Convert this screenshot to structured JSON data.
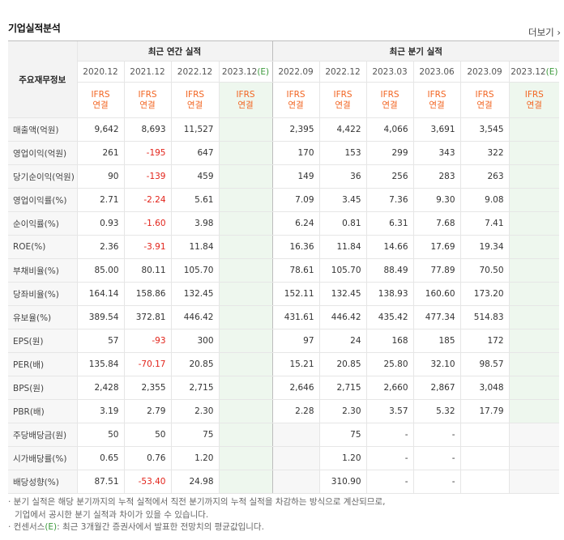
{
  "title": "기업실적분석",
  "more": "더보기",
  "header": {
    "row_label": "주요재무정보",
    "annual_title": "최근 연간 실적",
    "quarter_title": "최근 분기 실적",
    "periods": [
      "2020.12",
      "2021.12",
      "2022.12",
      "2023.12",
      "2022.09",
      "2022.12",
      "2023.03",
      "2023.06",
      "2023.09",
      "2023.12"
    ],
    "est_mark": "(E)",
    "ifrs_top": "IFRS",
    "ifrs_bottom": "연결"
  },
  "rows": [
    {
      "label": "매출액(억원)",
      "values": [
        "9,642",
        "8,693",
        "11,527",
        "",
        "2,395",
        "4,422",
        "4,066",
        "3,691",
        "3,545",
        ""
      ]
    },
    {
      "label": "영업이익(억원)",
      "values": [
        "261",
        "-195",
        "647",
        "",
        "170",
        "153",
        "299",
        "343",
        "322",
        ""
      ]
    },
    {
      "label": "당기순이익(억원)",
      "values": [
        "90",
        "-139",
        "459",
        "",
        "149",
        "36",
        "256",
        "283",
        "263",
        ""
      ]
    },
    {
      "label": "영업이익률(%)",
      "values": [
        "2.71",
        "-2.24",
        "5.61",
        "",
        "7.09",
        "3.45",
        "7.36",
        "9.30",
        "9.08",
        ""
      ]
    },
    {
      "label": "순이익률(%)",
      "values": [
        "0.93",
        "-1.60",
        "3.98",
        "",
        "6.24",
        "0.81",
        "6.31",
        "7.68",
        "7.41",
        ""
      ]
    },
    {
      "label": "ROE(%)",
      "values": [
        "2.36",
        "-3.91",
        "11.84",
        "",
        "16.36",
        "11.84",
        "14.66",
        "17.69",
        "19.34",
        ""
      ]
    },
    {
      "label": "부채비율(%)",
      "values": [
        "85.00",
        "80.11",
        "105.70",
        "",
        "78.61",
        "105.70",
        "88.49",
        "77.89",
        "70.50",
        ""
      ]
    },
    {
      "label": "당좌비율(%)",
      "values": [
        "164.14",
        "158.86",
        "132.45",
        "",
        "152.11",
        "132.45",
        "138.93",
        "160.60",
        "173.20",
        ""
      ]
    },
    {
      "label": "유보율(%)",
      "values": [
        "389.54",
        "372.81",
        "446.42",
        "",
        "431.61",
        "446.42",
        "435.42",
        "477.34",
        "514.83",
        ""
      ]
    },
    {
      "label": "EPS(원)",
      "values": [
        "57",
        "-93",
        "300",
        "",
        "97",
        "24",
        "168",
        "185",
        "172",
        ""
      ]
    },
    {
      "label": "PER(배)",
      "values": [
        "135.84",
        "-70.17",
        "20.85",
        "",
        "15.21",
        "20.85",
        "25.80",
        "32.10",
        "98.57",
        ""
      ]
    },
    {
      "label": "BPS(원)",
      "values": [
        "2,428",
        "2,355",
        "2,715",
        "",
        "2,646",
        "2,715",
        "2,660",
        "2,867",
        "3,048",
        ""
      ]
    },
    {
      "label": "PBR(배)",
      "values": [
        "3.19",
        "2.79",
        "2.30",
        "",
        "2.28",
        "2.30",
        "3.57",
        "5.32",
        "17.79",
        ""
      ]
    },
    {
      "label": "주당배당금(원)",
      "values": [
        "50",
        "50",
        "75",
        "",
        "",
        "75",
        "-",
        "-",
        "",
        ""
      ]
    },
    {
      "label": "시가배당률(%)",
      "values": [
        "0.65",
        "0.76",
        "1.20",
        "",
        "",
        "1.20",
        "-",
        "-",
        "",
        ""
      ]
    },
    {
      "label": "배당성향(%)",
      "values": [
        "87.51",
        "-53.40",
        "24.98",
        "",
        "",
        "310.90",
        "-",
        "-",
        "",
        ""
      ]
    }
  ],
  "notes": {
    "line1": "· 분기 실적은 해당 분기까지의 누적 실적에서 직전 분기까지의 누적 실적을 차감하는 방식으로 계산되므로,",
    "line2": "기업에서 공시한 분기 실적과 차이가 있을 수 있습니다.",
    "line3_a": "· 컨센서스",
    "line3_e": "(E)",
    "line3_b": ": 최근 3개월간 증권사에서 발표한 전망치의 평균값입니다."
  }
}
